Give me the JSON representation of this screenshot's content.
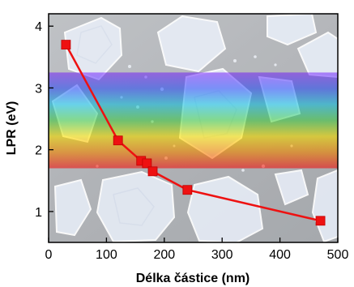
{
  "chart_data": {
    "type": "line",
    "title": "",
    "xlabel": "Délka částice (nm)",
    "ylabel": "LPR (eV)",
    "xlim": [
      0,
      500
    ],
    "ylim": [
      0.5,
      4.2
    ],
    "x_ticks": [
      0,
      100,
      200,
      300,
      400,
      500
    ],
    "y_ticks": [
      1,
      2,
      3,
      4
    ],
    "grid": false,
    "legend": "none",
    "series": [
      {
        "x": [
          30,
          120,
          160,
          170,
          180,
          240,
          470
        ],
        "y": [
          3.7,
          2.15,
          1.82,
          1.78,
          1.65,
          1.35,
          0.85
        ],
        "color": "#ee1111",
        "marker": "square"
      }
    ],
    "background": {
      "image": "SEM micrograph of crystalline nanoparticles",
      "spectrum_band_ev": [
        1.7,
        3.25
      ],
      "spectrum_colors": [
        "#ff1a1a",
        "#ff8c00",
        "#ffe600",
        "#4cd44c",
        "#1ec8e6",
        "#3a5cff",
        "#8a3aff"
      ]
    }
  }
}
